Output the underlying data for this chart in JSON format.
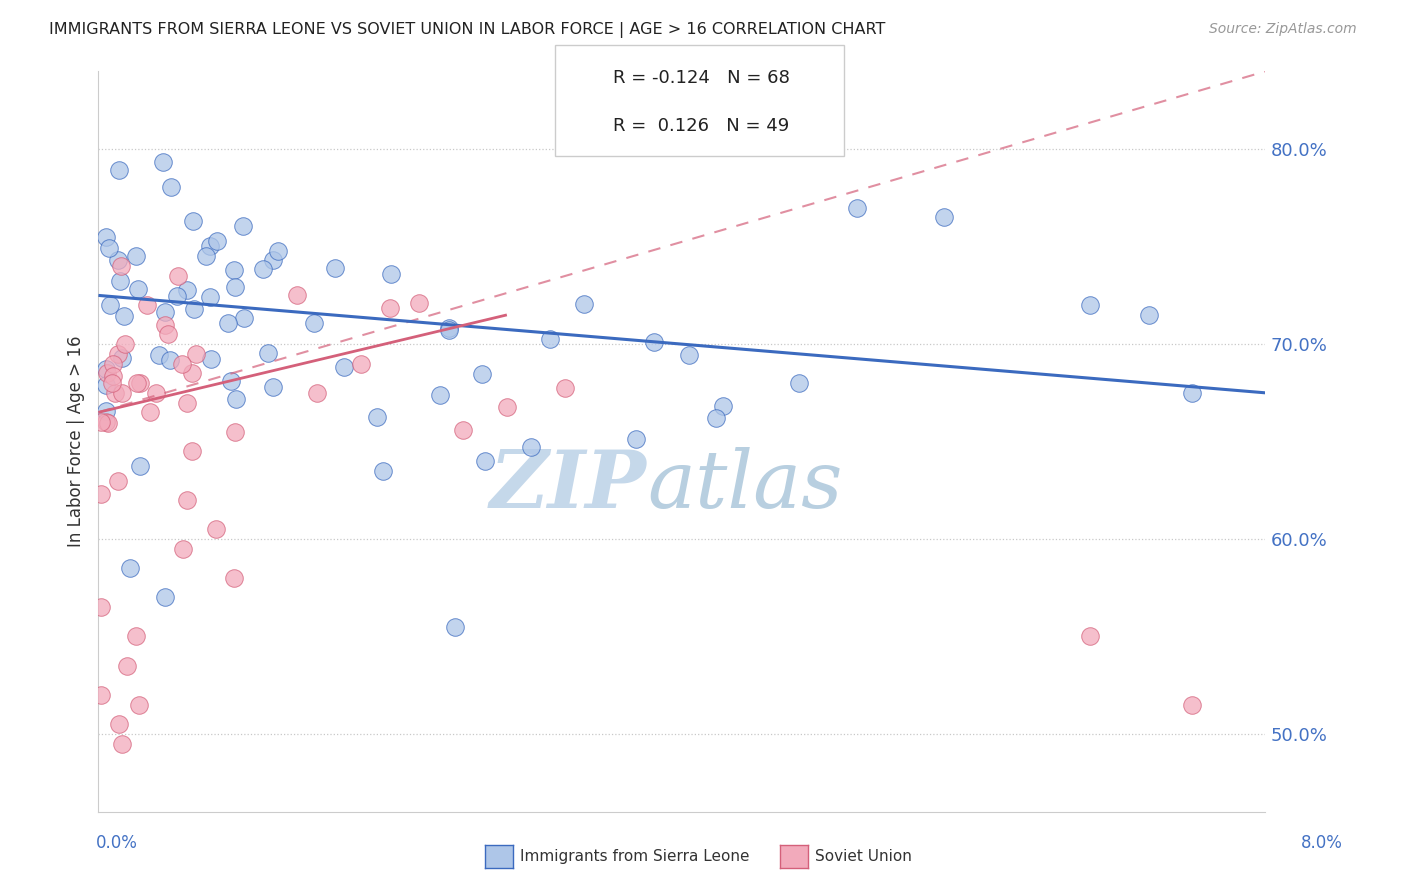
{
  "title": "IMMIGRANTS FROM SIERRA LEONE VS SOVIET UNION IN LABOR FORCE | AGE > 16 CORRELATION CHART",
  "source": "Source: ZipAtlas.com",
  "ylabel": "In Labor Force | Age > 16",
  "xmin": 0.0,
  "xmax": 8.0,
  "ymin": 46.0,
  "ymax": 84.0,
  "yticks": [
    50.0,
    60.0,
    70.0,
    80.0
  ],
  "ytick_labels": [
    "50.0%",
    "60.0%",
    "70.0%",
    "80.0%"
  ],
  "legend_R1": "-0.124",
  "legend_N1": "68",
  "legend_R2": "0.126",
  "legend_N2": "49",
  "color_sierra": "#aec6e8",
  "color_soviet": "#f2aabb",
  "trend_color_sierra": "#3b6abf",
  "trend_color_soviet": "#d4607a",
  "watermark_zip": "ZIP",
  "watermark_atlas": "atlas",
  "watermark_color": "#d0e4f0",
  "sierra_trend_x0": 0.0,
  "sierra_trend_y0": 72.5,
  "sierra_trend_x1": 8.0,
  "sierra_trend_y1": 67.5,
  "soviet_trend_x0": 0.0,
  "soviet_trend_y0": 66.5,
  "soviet_trend_x1": 2.8,
  "soviet_trend_y1": 71.5,
  "soviet_dash_x0": 0.0,
  "soviet_dash_y0": 66.5,
  "soviet_dash_x1": 8.0,
  "soviet_dash_y1": 84.0
}
